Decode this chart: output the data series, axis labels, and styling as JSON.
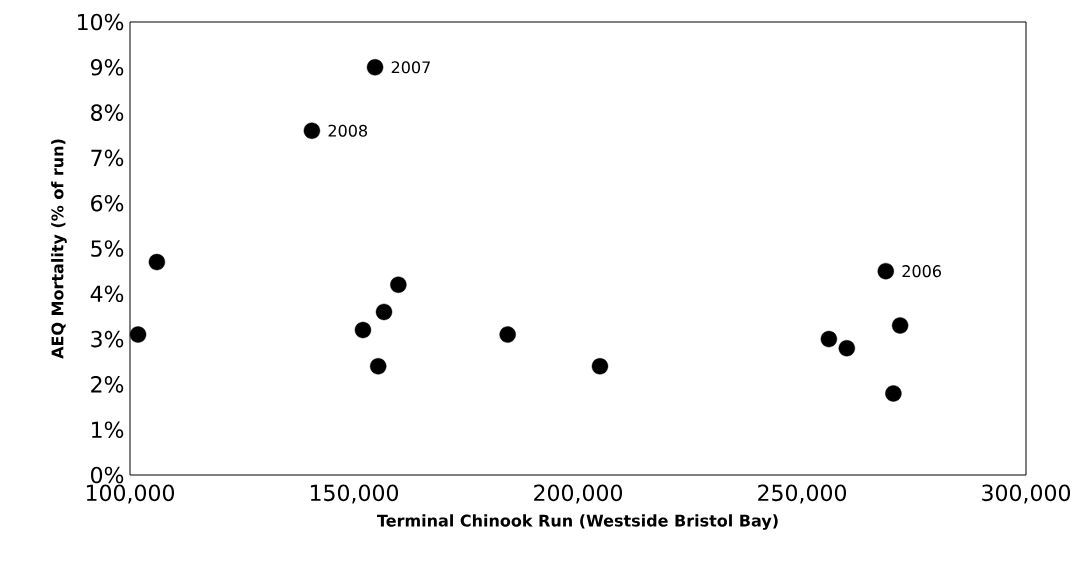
{
  "chart_data": {
    "type": "scatter",
    "xlabel": "Terminal Chinook Run (Westside Bristol Bay)",
    "ylabel": "AEQ Mortality (% of run)",
    "x": [
      101800,
      106000,
      140600,
      154700,
      152000,
      155400,
      156700,
      159900,
      184300,
      204900,
      256000,
      260000,
      268700,
      270400,
      271900
    ],
    "series": [
      {
        "color": "#000000",
        "values": [
          3.1,
          4.7,
          7.6,
          9.0,
          3.2,
          2.4,
          3.6,
          4.2,
          3.1,
          2.4,
          3.0,
          2.8,
          4.5,
          1.8,
          3.3
        ]
      }
    ],
    "xlim": [
      100000,
      300000
    ],
    "ylim": [
      0,
      10
    ],
    "xticks": [
      {
        "value": 100000,
        "label": "100,000"
      },
      {
        "value": 150000,
        "label": "150,000"
      },
      {
        "value": 200000,
        "label": "200,000"
      },
      {
        "value": 250000,
        "label": "250,000"
      },
      {
        "value": 300000,
        "label": "300,000"
      }
    ],
    "yticks": [
      {
        "value": 0,
        "label": "0%"
      },
      {
        "value": 1,
        "label": "1%"
      },
      {
        "value": 2,
        "label": "2%"
      },
      {
        "value": 3,
        "label": "3%"
      },
      {
        "value": 4,
        "label": "4%"
      },
      {
        "value": 5,
        "label": "5%"
      },
      {
        "value": 6,
        "label": "6%"
      },
      {
        "value": 7,
        "label": "7%"
      },
      {
        "value": 8,
        "label": "8%"
      },
      {
        "value": 9,
        "label": "9%"
      },
      {
        "value": 10,
        "label": "10%"
      }
    ],
    "annotations": [
      {
        "text": "2007",
        "x": 154700,
        "y": 9.0
      },
      {
        "text": "2008",
        "x": 140600,
        "y": 7.6
      },
      {
        "text": "2006",
        "x": 268700,
        "y": 4.5
      }
    ]
  }
}
